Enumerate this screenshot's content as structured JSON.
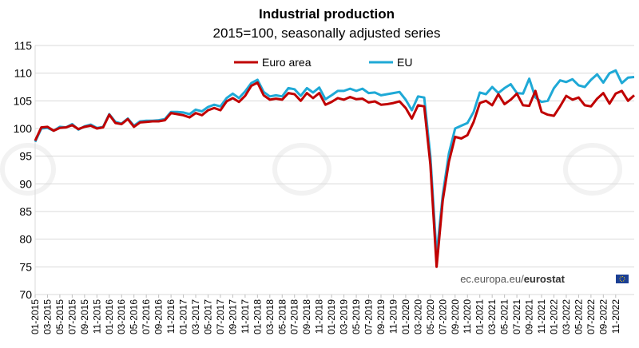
{
  "chart_data": {
    "type": "line",
    "title": "Industrial production",
    "subtitle": "2015=100, seasonally adjusted series",
    "xlabel": "",
    "ylabel": "",
    "ylim": [
      70,
      115
    ],
    "yticks": [
      70,
      75,
      80,
      85,
      90,
      95,
      100,
      105,
      110,
      115
    ],
    "grid": true,
    "legend_position": "top-center",
    "source": "ec.europa.eu/",
    "source_brand": "eurostat",
    "xtick_labels": [
      "01-2015",
      "03-2015",
      "05-2015",
      "07-2015",
      "09-2015",
      "11-2015",
      "01-2016",
      "03-2016",
      "05-2016",
      "07-2016",
      "09-2016",
      "11-2016",
      "01-2017",
      "03-2017",
      "05-2017",
      "07-2017",
      "09-2017",
      "11-2017",
      "01-2018",
      "03-2018",
      "05-2018",
      "07-2018",
      "09-2018",
      "11-2018",
      "01-2019",
      "03-2019",
      "05-2019",
      "07-2019",
      "09-2019",
      "11-2019",
      "01-2020",
      "03-2020",
      "05-2020",
      "07-2020",
      "09-2020",
      "11-2020",
      "01-2021",
      "03-2021",
      "05-2021",
      "07-2021",
      "09-2021",
      "11-2021",
      "01-2022",
      "03-2022",
      "05-2022",
      "07-2022",
      "09-2022",
      "11-2022"
    ],
    "series": [
      {
        "name": "Euro area",
        "color": "#c00000",
        "values": [
          97.8,
          100.2,
          100.3,
          99.6,
          100.1,
          100.2,
          100.6,
          99.9,
          100.3,
          100.5,
          100.0,
          100.2,
          102.5,
          101.0,
          100.8,
          101.7,
          100.3,
          101.1,
          101.2,
          101.3,
          101.3,
          101.5,
          102.8,
          102.6,
          102.4,
          102.0,
          102.8,
          102.4,
          103.3,
          103.7,
          103.3,
          104.9,
          105.5,
          104.8,
          105.9,
          107.7,
          108.3,
          106.0,
          105.2,
          105.4,
          105.2,
          106.4,
          106.2,
          105.0,
          106.4,
          105.5,
          106.4,
          104.3,
          104.8,
          105.5,
          105.2,
          105.7,
          105.3,
          105.4,
          104.7,
          104.9,
          104.3,
          104.4,
          104.6,
          104.9,
          103.7,
          101.8,
          104.2,
          104.0,
          93.5,
          75.0,
          87.0,
          94.0,
          98.5,
          98.2,
          98.8,
          101.2,
          104.6,
          105.0,
          104.2,
          106.2,
          104.4,
          105.2,
          106.3,
          104.2,
          104.1,
          106.8,
          103.0,
          102.5,
          102.3,
          104.0,
          105.9,
          105.2,
          105.6,
          104.2,
          104.0,
          105.4,
          106.4,
          104.5,
          106.3,
          106.8,
          105.0,
          106.0
        ]
      },
      {
        "name": "EU",
        "color": "#1fa9d6",
        "values": [
          97.6,
          100.0,
          100.1,
          99.6,
          100.3,
          100.2,
          100.8,
          99.8,
          100.4,
          100.7,
          100.1,
          100.3,
          102.6,
          101.2,
          100.9,
          101.8,
          100.5,
          101.3,
          101.4,
          101.4,
          101.5,
          101.7,
          103.0,
          103.0,
          102.9,
          102.6,
          103.4,
          103.1,
          103.9,
          104.3,
          104.0,
          105.5,
          106.3,
          105.5,
          106.7,
          108.2,
          108.8,
          106.6,
          105.8,
          106.0,
          105.8,
          107.3,
          107.1,
          105.9,
          107.3,
          106.5,
          107.4,
          105.3,
          106.0,
          106.8,
          106.8,
          107.2,
          106.8,
          107.2,
          106.4,
          106.5,
          106.0,
          106.2,
          106.4,
          106.6,
          105.2,
          103.3,
          105.8,
          105.6,
          95.0,
          77.0,
          88.0,
          95.5,
          100.0,
          100.5,
          101.0,
          103.0,
          106.5,
          106.2,
          107.5,
          106.4,
          107.3,
          108.0,
          106.4,
          106.3,
          109.0,
          105.6,
          104.8,
          105.0,
          107.3,
          108.7,
          108.4,
          108.9,
          107.8,
          107.5,
          108.8,
          109.8,
          108.3,
          110.0,
          110.5,
          108.2,
          109.2,
          109.3
        ]
      }
    ]
  }
}
